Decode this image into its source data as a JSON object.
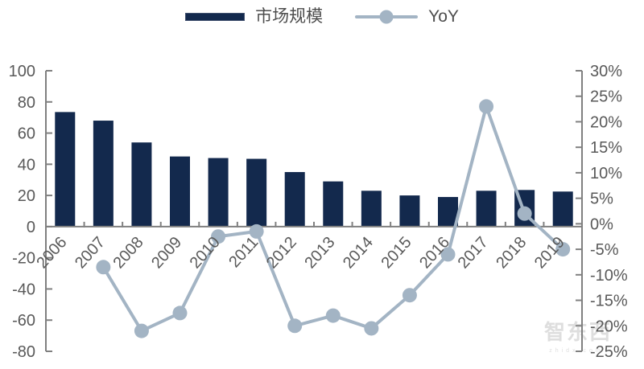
{
  "colors": {
    "bar": "#13294d",
    "line": "#a3b4c4",
    "axis": "#808080",
    "tick_text": "#595959",
    "watermark": "#c9c9c9"
  },
  "watermark": {
    "text": "智东西",
    "subtext": "zhidx.com"
  },
  "chart_data": {
    "type": "bar",
    "combo": "bar+line",
    "categories": [
      "2006",
      "2007",
      "2008",
      "2009",
      "2010",
      "2011",
      "2012",
      "2013",
      "2014",
      "2015",
      "2016",
      "2017",
      "2018",
      "2019"
    ],
    "series": [
      {
        "name": "市场规模",
        "type": "bar",
        "axis": "left",
        "values": [
          73.5,
          68,
          54,
          45,
          44,
          43.5,
          35,
          29,
          23,
          20,
          19,
          23,
          23.5,
          22.5
        ]
      },
      {
        "name": "YoY",
        "type": "line",
        "axis": "right",
        "values": [
          null,
          -8.5,
          -21,
          -17.5,
          -2.5,
          -1.5,
          -20,
          -18,
          -20.5,
          -14,
          -6,
          23,
          2,
          -5
        ]
      }
    ],
    "left_axis": {
      "min": -80,
      "max": 100,
      "step": 20,
      "tick_labels": [
        "100",
        "80",
        "60",
        "40",
        "20",
        "0",
        "-20",
        "-40",
        "-60",
        "-80"
      ]
    },
    "right_axis": {
      "min": -25,
      "max": 30,
      "step": 5,
      "format": "percent",
      "tick_labels": [
        "30%",
        "25%",
        "20%",
        "15%",
        "10%",
        "5%",
        "0%",
        "-5%",
        "-10%",
        "-15%",
        "-20%",
        "-25%"
      ]
    },
    "title": "",
    "xlabel": "",
    "ylabel": "",
    "grid": false,
    "legend_position": "top"
  }
}
